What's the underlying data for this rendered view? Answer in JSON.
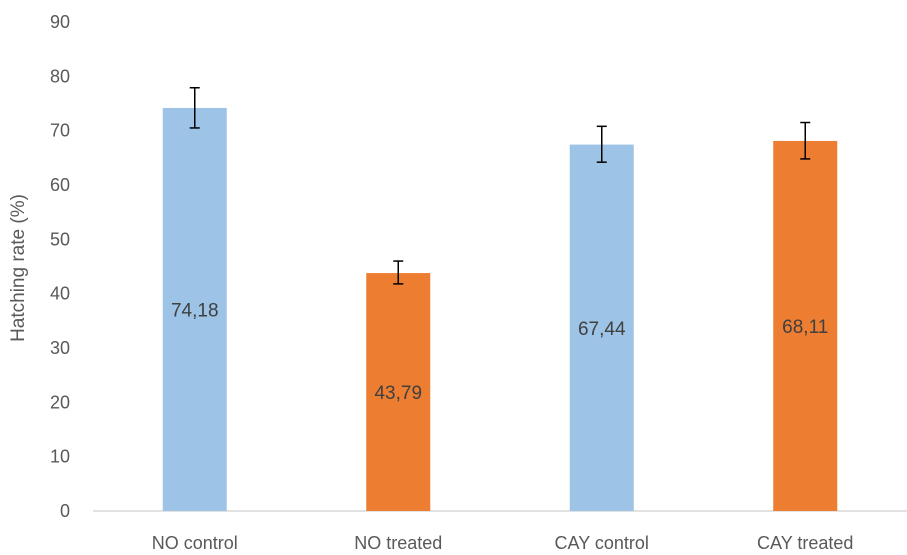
{
  "chart_data": {
    "type": "bar",
    "categories": [
      "NO control",
      "NO treated",
      "CAY control",
      "CAY treated"
    ],
    "values": [
      74.18,
      43.79,
      67.44,
      68.11
    ],
    "data_labels": [
      "74,18",
      "43,79",
      "67,44",
      "68,11"
    ],
    "error_bars": [
      {
        "low": 70.5,
        "high": 77.9
      },
      {
        "low": 41.8,
        "high": 46.0
      },
      {
        "low": 64.2,
        "high": 70.8
      },
      {
        "low": 64.8,
        "high": 71.5
      }
    ],
    "bar_colors": [
      "#9DC3E6",
      "#ED7D31",
      "#9DC3E6",
      "#ED7D31"
    ],
    "ylabel": "Hatching rate (%)",
    "ylim": [
      0,
      90
    ],
    "yticks": [
      "0",
      "10",
      "20",
      "30",
      "40",
      "50",
      "60",
      "70",
      "80",
      "90"
    ],
    "grid": false,
    "legend": "none"
  }
}
